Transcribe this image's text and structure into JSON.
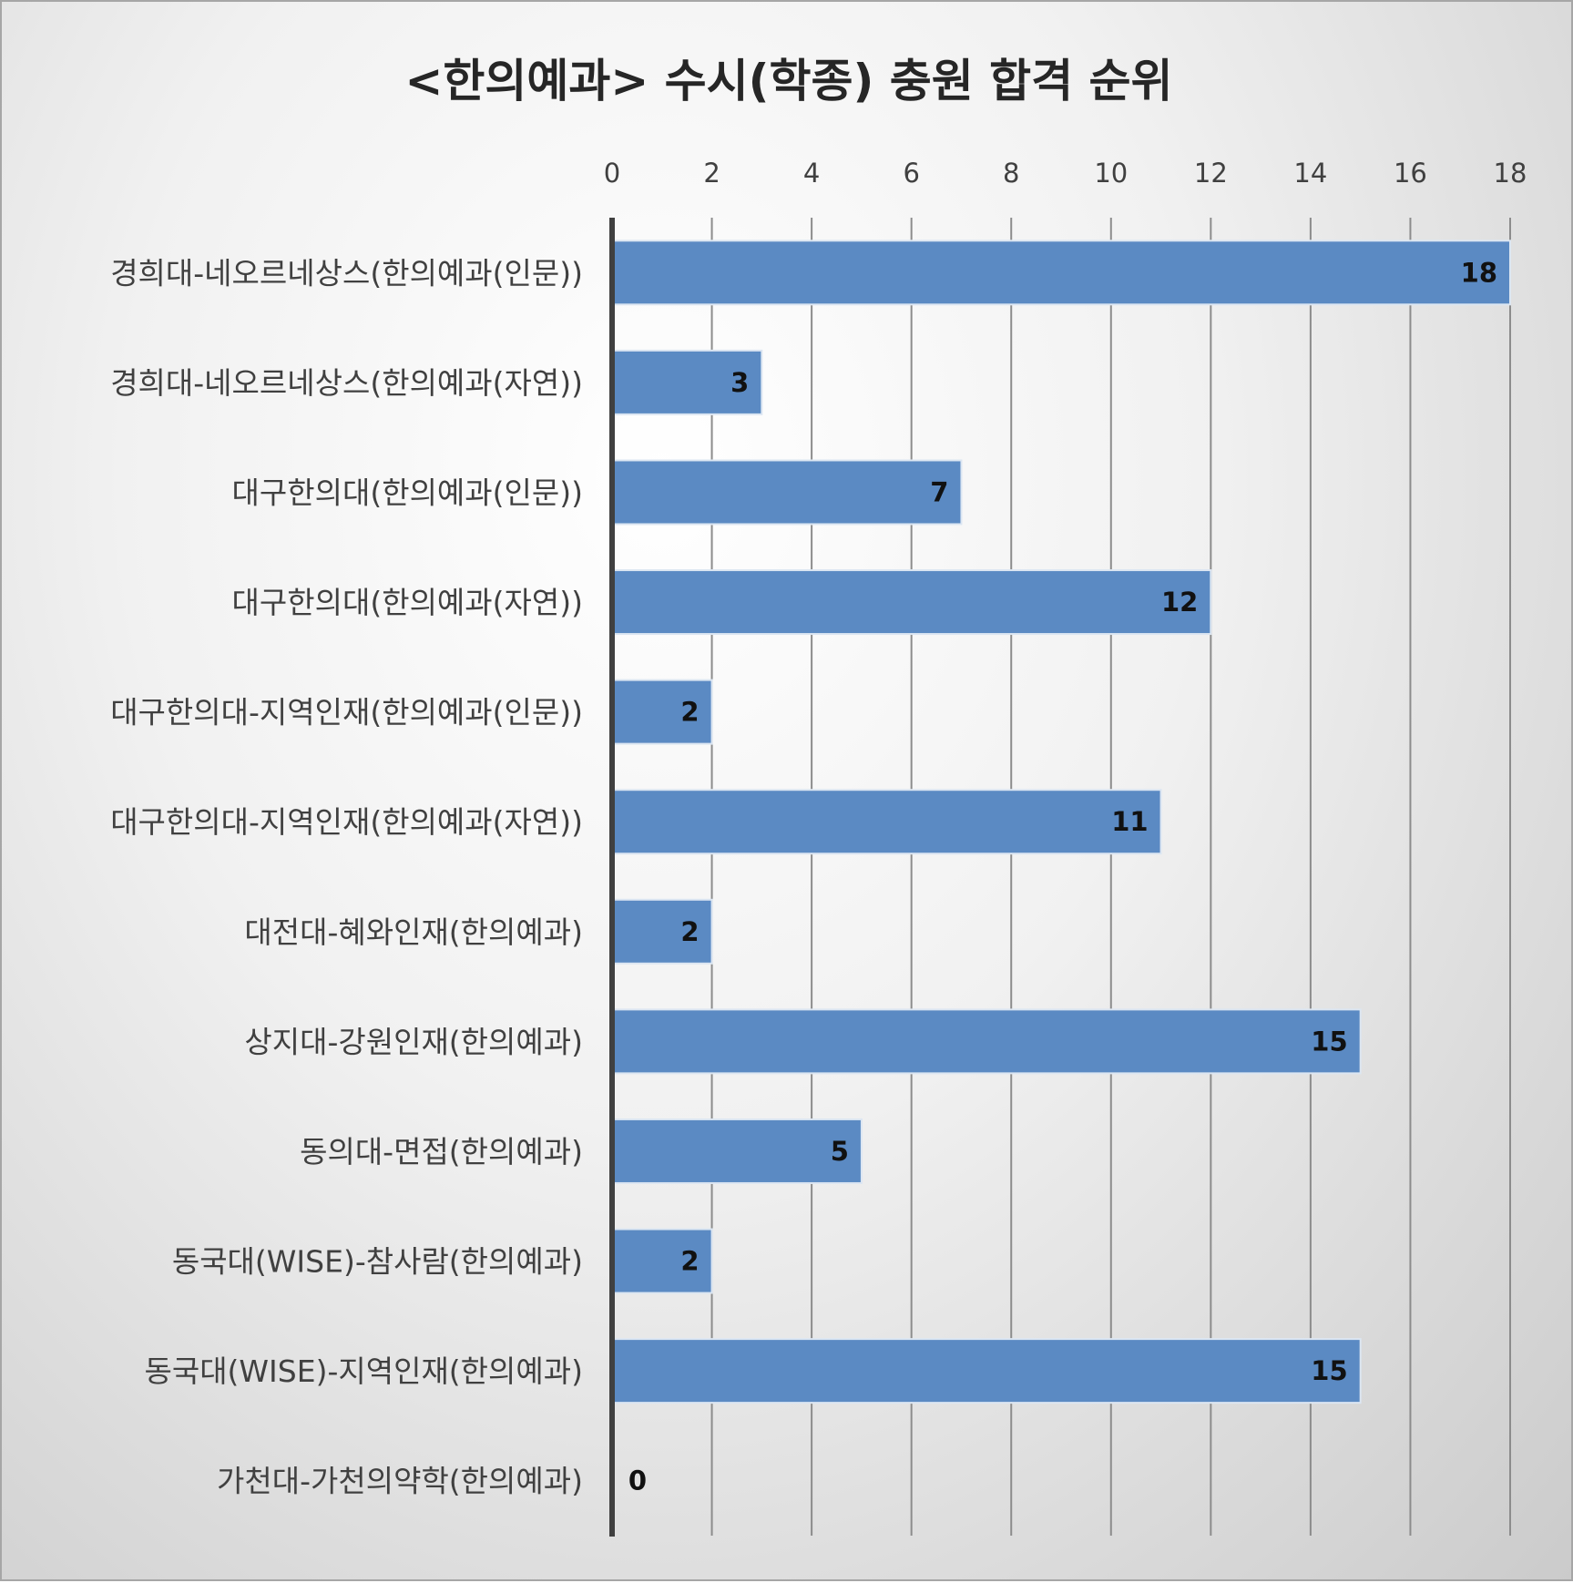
{
  "colors": {
    "bar": "#5b8ac3",
    "bar_border": "#dce6f2",
    "grid": "#8c8c8c",
    "axis": "#404040"
  },
  "chart_data": {
    "type": "bar",
    "orientation": "horizontal",
    "title": "<한의예과> 수시(학종) 충원 합격 순위",
    "xlabel": "",
    "ylabel": "",
    "xlim": [
      0,
      18
    ],
    "x_axis_position": "top",
    "ticks": [
      "0",
      "2",
      "4",
      "6",
      "8",
      "10",
      "12",
      "14",
      "16",
      "18"
    ],
    "grid": true,
    "legend": "none",
    "categories": [
      "경희대-네오르네상스(한의예과(인문))",
      "경희대-네오르네상스(한의예과(자연))",
      "대구한의대(한의예과(인문))",
      "대구한의대(한의예과(자연))",
      "대구한의대-지역인재(한의예과(인문))",
      "대구한의대-지역인재(한의예과(자연))",
      "대전대-혜와인재(한의예과)",
      "상지대-강원인재(한의예과)",
      "동의대-면접(한의예과)",
      "동국대(WISE)-참사람(한의예과)",
      "동국대(WISE)-지역인재(한의예과)",
      "가천대-가천의약학(한의예과)"
    ],
    "values": [
      18,
      3,
      7,
      12,
      2,
      11,
      2,
      15,
      5,
      2,
      15,
      0
    ],
    "data_labels": [
      "18",
      "3",
      "7",
      "12",
      "2",
      "11",
      "2",
      "15",
      "5",
      "2",
      "15",
      "0"
    ]
  }
}
